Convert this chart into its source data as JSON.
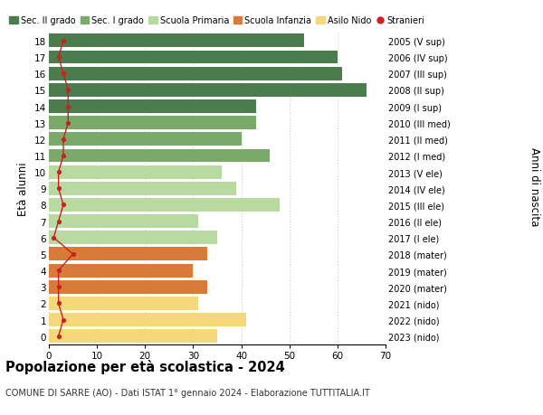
{
  "ages": [
    18,
    17,
    16,
    15,
    14,
    13,
    12,
    11,
    10,
    9,
    8,
    7,
    6,
    5,
    4,
    3,
    2,
    1,
    0
  ],
  "values": [
    53,
    60,
    61,
    66,
    43,
    43,
    40,
    46,
    36,
    39,
    48,
    31,
    35,
    33,
    30,
    33,
    31,
    41,
    35
  ],
  "stranieri": [
    3,
    2,
    3,
    4,
    4,
    4,
    3,
    3,
    2,
    2,
    3,
    2,
    1,
    5,
    2,
    2,
    2,
    3,
    2
  ],
  "right_labels": [
    "2005 (V sup)",
    "2006 (IV sup)",
    "2007 (III sup)",
    "2008 (II sup)",
    "2009 (I sup)",
    "2010 (III med)",
    "2011 (II med)",
    "2012 (I med)",
    "2013 (V ele)",
    "2014 (IV ele)",
    "2015 (III ele)",
    "2016 (II ele)",
    "2017 (I ele)",
    "2018 (mater)",
    "2019 (mater)",
    "2020 (mater)",
    "2021 (nido)",
    "2022 (nido)",
    "2023 (nido)"
  ],
  "bar_colors": [
    "#4a7c4e",
    "#4a7c4e",
    "#4a7c4e",
    "#4a7c4e",
    "#4a7c4e",
    "#7aaa6a",
    "#7aaa6a",
    "#7aaa6a",
    "#b8d9a0",
    "#b8d9a0",
    "#b8d9a0",
    "#b8d9a0",
    "#b8d9a0",
    "#d87a38",
    "#d87a38",
    "#d87a38",
    "#f5d87a",
    "#f5d87a",
    "#f5d87a"
  ],
  "legend_labels": [
    "Sec. II grado",
    "Sec. I grado",
    "Scuola Primaria",
    "Scuola Infanzia",
    "Asilo Nido",
    "Stranieri"
  ],
  "legend_colors": [
    "#4a7c4e",
    "#7aaa6a",
    "#b8d9a0",
    "#d87a38",
    "#f5d87a",
    "#cc2020"
  ],
  "stranieri_color": "#cc2020",
  "ylabel": "Età alunni",
  "right_ylabel": "Anni di nascita",
  "title": "Popolazione per età scolastica - 2024",
  "subtitle": "COMUNE DI SARRE (AO) - Dati ISTAT 1° gennaio 2024 - Elaborazione TUTTITALIA.IT",
  "xlim": [
    0,
    70
  ],
  "background_color": "#ffffff",
  "grid_color": "#cccccc"
}
